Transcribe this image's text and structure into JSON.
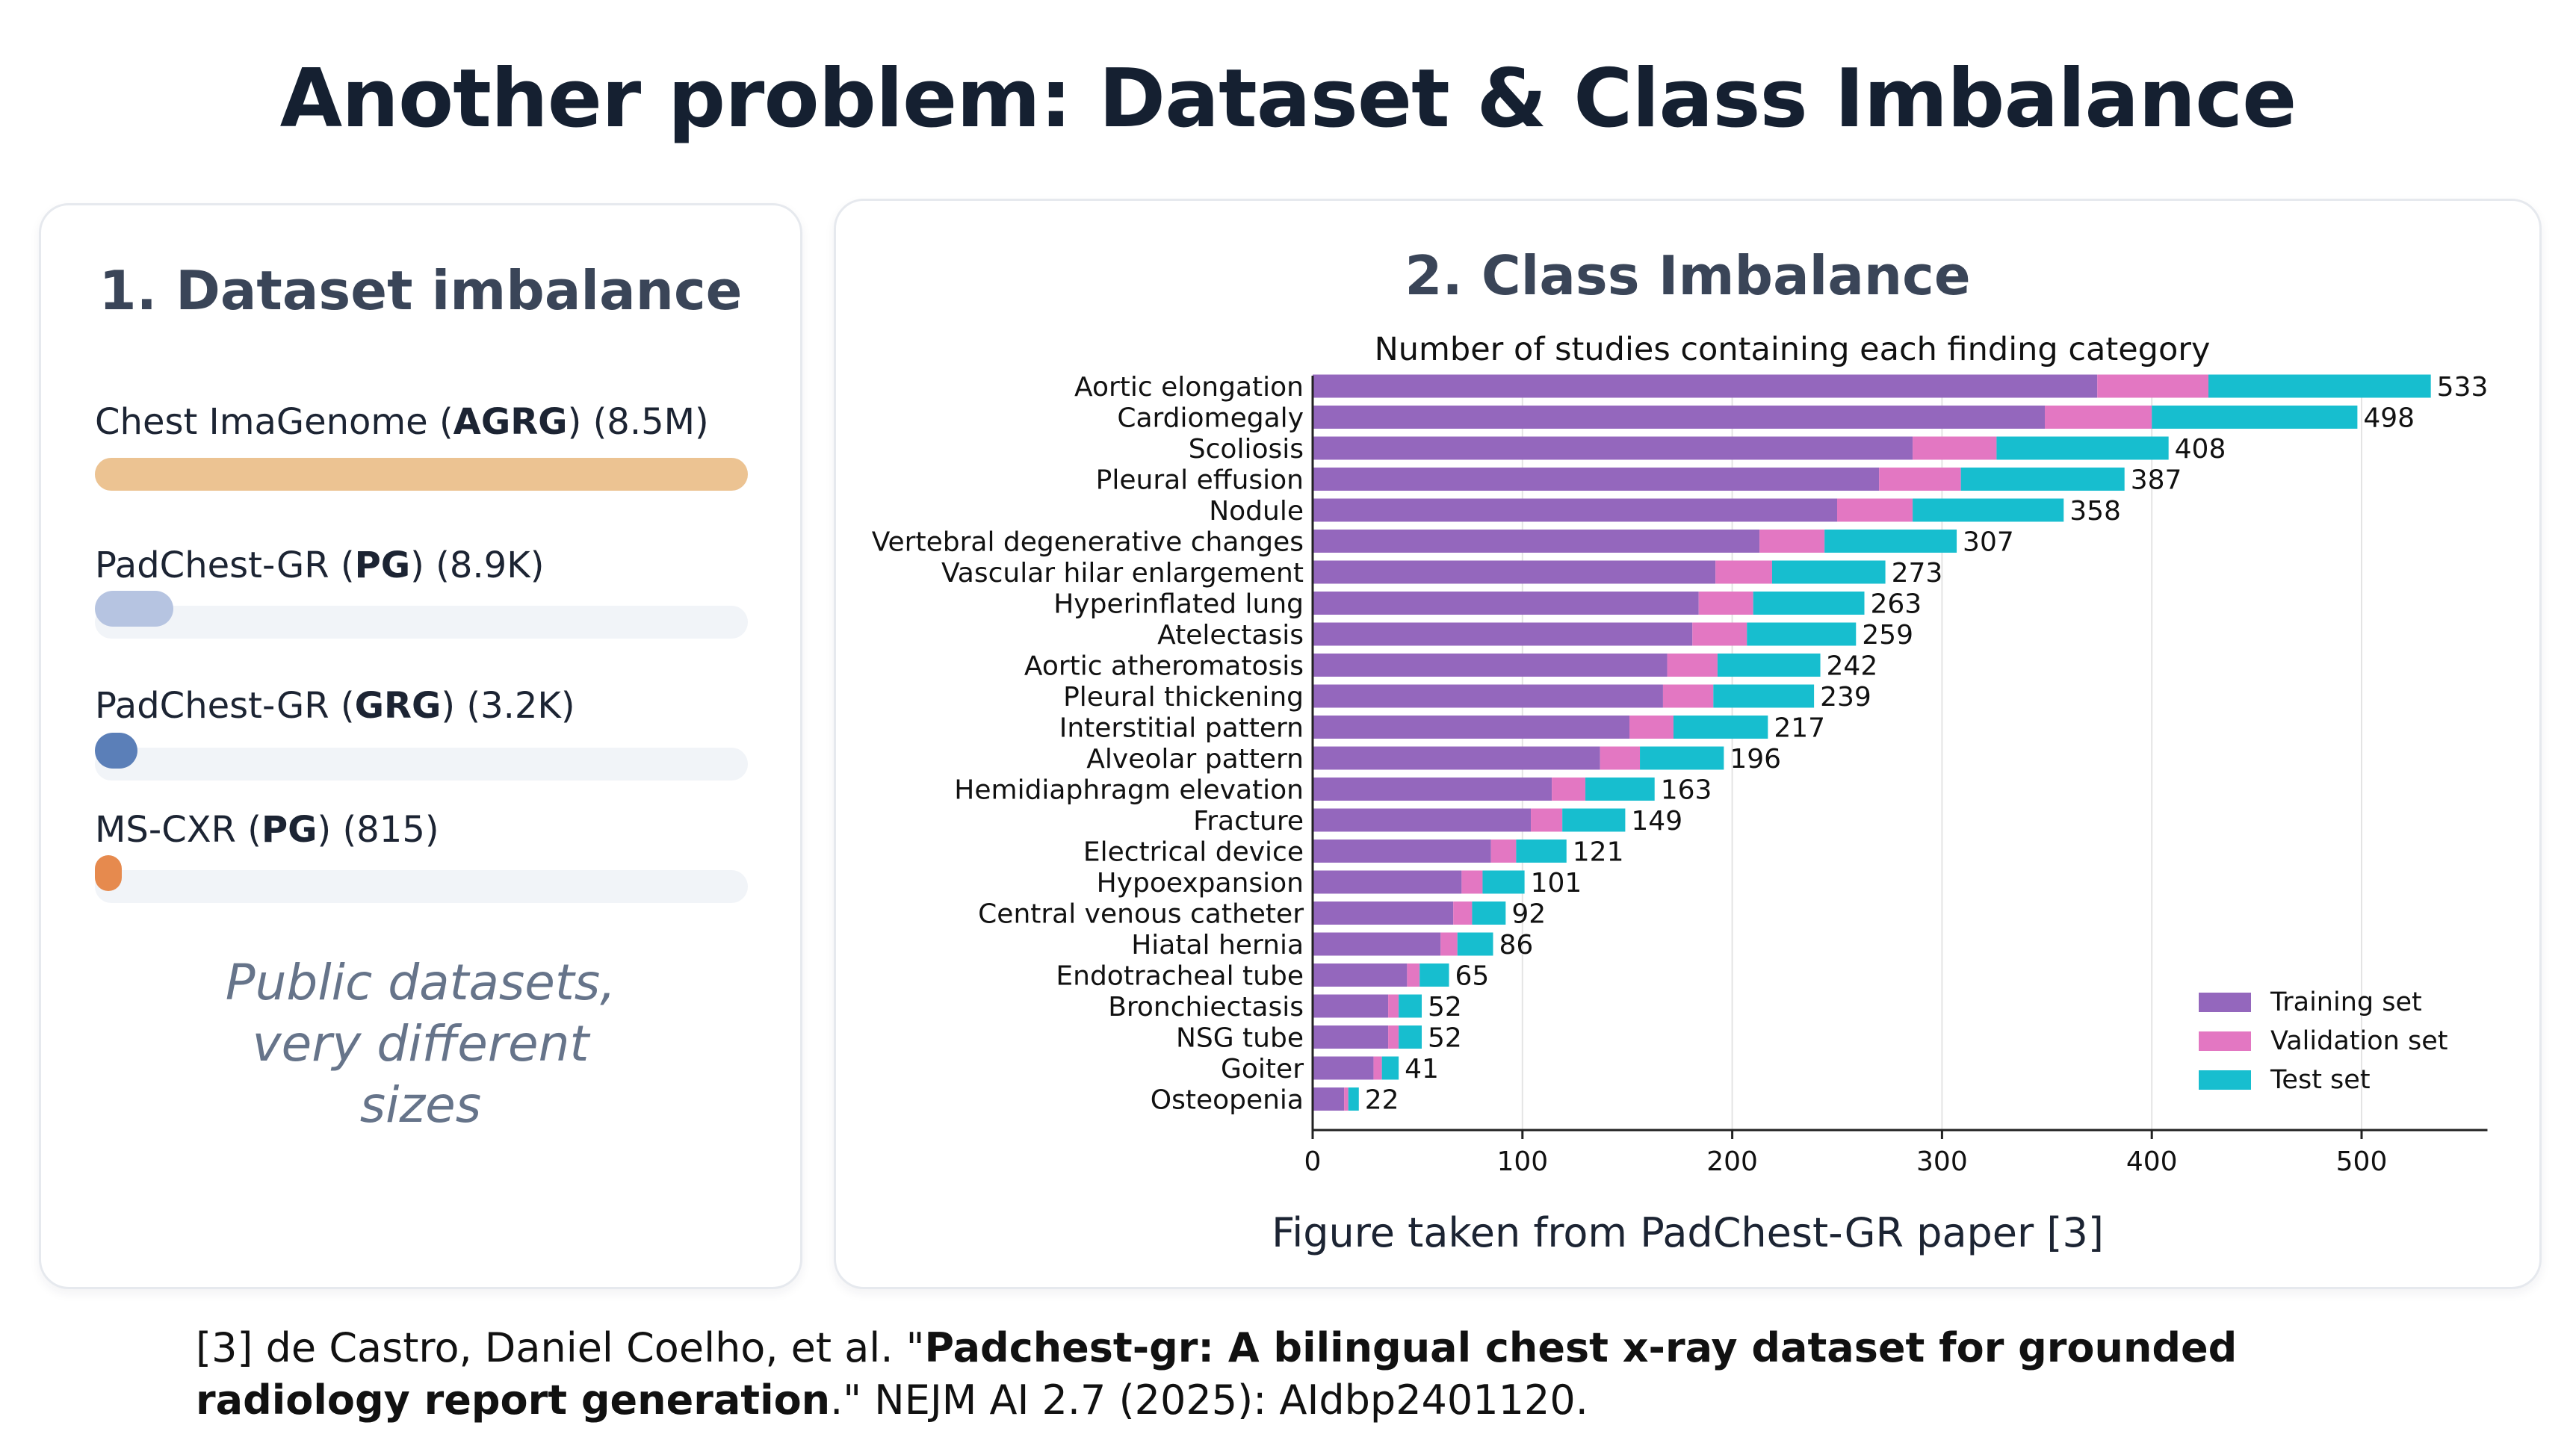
{
  "page": {
    "title": "Another problem: Dataset & Class Imbalance"
  },
  "left_panel": {
    "title": "1. Dataset imbalance",
    "datasets": [
      {
        "name": "Chest ImaGenome",
        "tag": "AGRG",
        "size_label": "8.5M",
        "bar_fraction": 1.0,
        "color": "#ecc392"
      },
      {
        "name": "PadChest-GR",
        "tag": "PG",
        "size_label": "8.9K",
        "bar_fraction": 0.12,
        "color": "#b6c4e1"
      },
      {
        "name": "PadChest-GR",
        "tag": "GRG",
        "size_label": "3.2K",
        "bar_fraction": 0.065,
        "color": "#5b7fb8"
      },
      {
        "name": "MS-CXR",
        "tag": "PG",
        "size_label": "815",
        "bar_fraction": 0.04,
        "color": "#e68a4e"
      }
    ],
    "note": "Public datasets, very different sizes"
  },
  "right_panel": {
    "title": "2. Class Imbalance",
    "caption": "Figure taken from PadChest-GR paper [3]"
  },
  "chart_data": {
    "type": "bar",
    "orientation": "horizontal",
    "stacked": true,
    "title": "Number of studies containing each finding category",
    "xlabel": "",
    "ylabel": "",
    "xlim": [
      0,
      560
    ],
    "xticks": [
      0,
      100,
      200,
      300,
      400,
      500
    ],
    "grid": "vertical",
    "legend_position": "bottom-right",
    "categories": [
      "Aortic elongation",
      "Cardiomegaly",
      "Scoliosis",
      "Pleural effusion",
      "Nodule",
      "Vertebral degenerative changes",
      "Vascular hilar enlargement",
      "Hyperinflated lung",
      "Atelectasis",
      "Aortic atheromatosis",
      "Pleural thickening",
      "Interstitial pattern",
      "Alveolar pattern",
      "Hemidiaphragm elevation",
      "Fracture",
      "Electrical device",
      "Hypoexpansion",
      "Central venous catheter",
      "Hiatal hernia",
      "Endotracheal tube",
      "Bronchiectasis",
      "NSG tube",
      "Goiter",
      "Osteopenia"
    ],
    "series": [
      {
        "name": "Training set",
        "color": "#9467bd",
        "values": [
          374,
          349,
          286,
          270,
          250,
          213,
          192,
          184,
          181,
          169,
          167,
          151,
          137,
          114,
          104,
          85,
          71,
          67,
          61,
          45,
          36,
          36,
          29,
          15
        ]
      },
      {
        "name": "Validation set",
        "color": "#e377c2",
        "values": [
          53,
          51,
          40,
          39,
          36,
          31,
          27,
          26,
          26,
          24,
          24,
          21,
          19,
          16,
          15,
          12,
          10,
          9,
          8,
          6,
          5,
          5,
          4,
          2
        ]
      },
      {
        "name": "Test set",
        "color": "#17becf",
        "values": [
          106,
          98,
          82,
          78,
          72,
          63,
          54,
          53,
          52,
          49,
          48,
          45,
          40,
          33,
          30,
          24,
          20,
          16,
          17,
          14,
          11,
          11,
          8,
          5
        ]
      }
    ],
    "totals": [
      533,
      498,
      408,
      387,
      358,
      307,
      273,
      263,
      259,
      242,
      239,
      217,
      196,
      163,
      149,
      121,
      101,
      92,
      86,
      65,
      52,
      52,
      41,
      22
    ]
  },
  "reference": {
    "prefix": "[3] de Castro, Daniel Coelho, et al. \"",
    "bold_title": "Padchest-gr: A bilingual chest x-ray dataset for grounded radiology report generation",
    "suffix": ".\" NEJM AI 2.7 (2025): AIdbp2401120."
  }
}
